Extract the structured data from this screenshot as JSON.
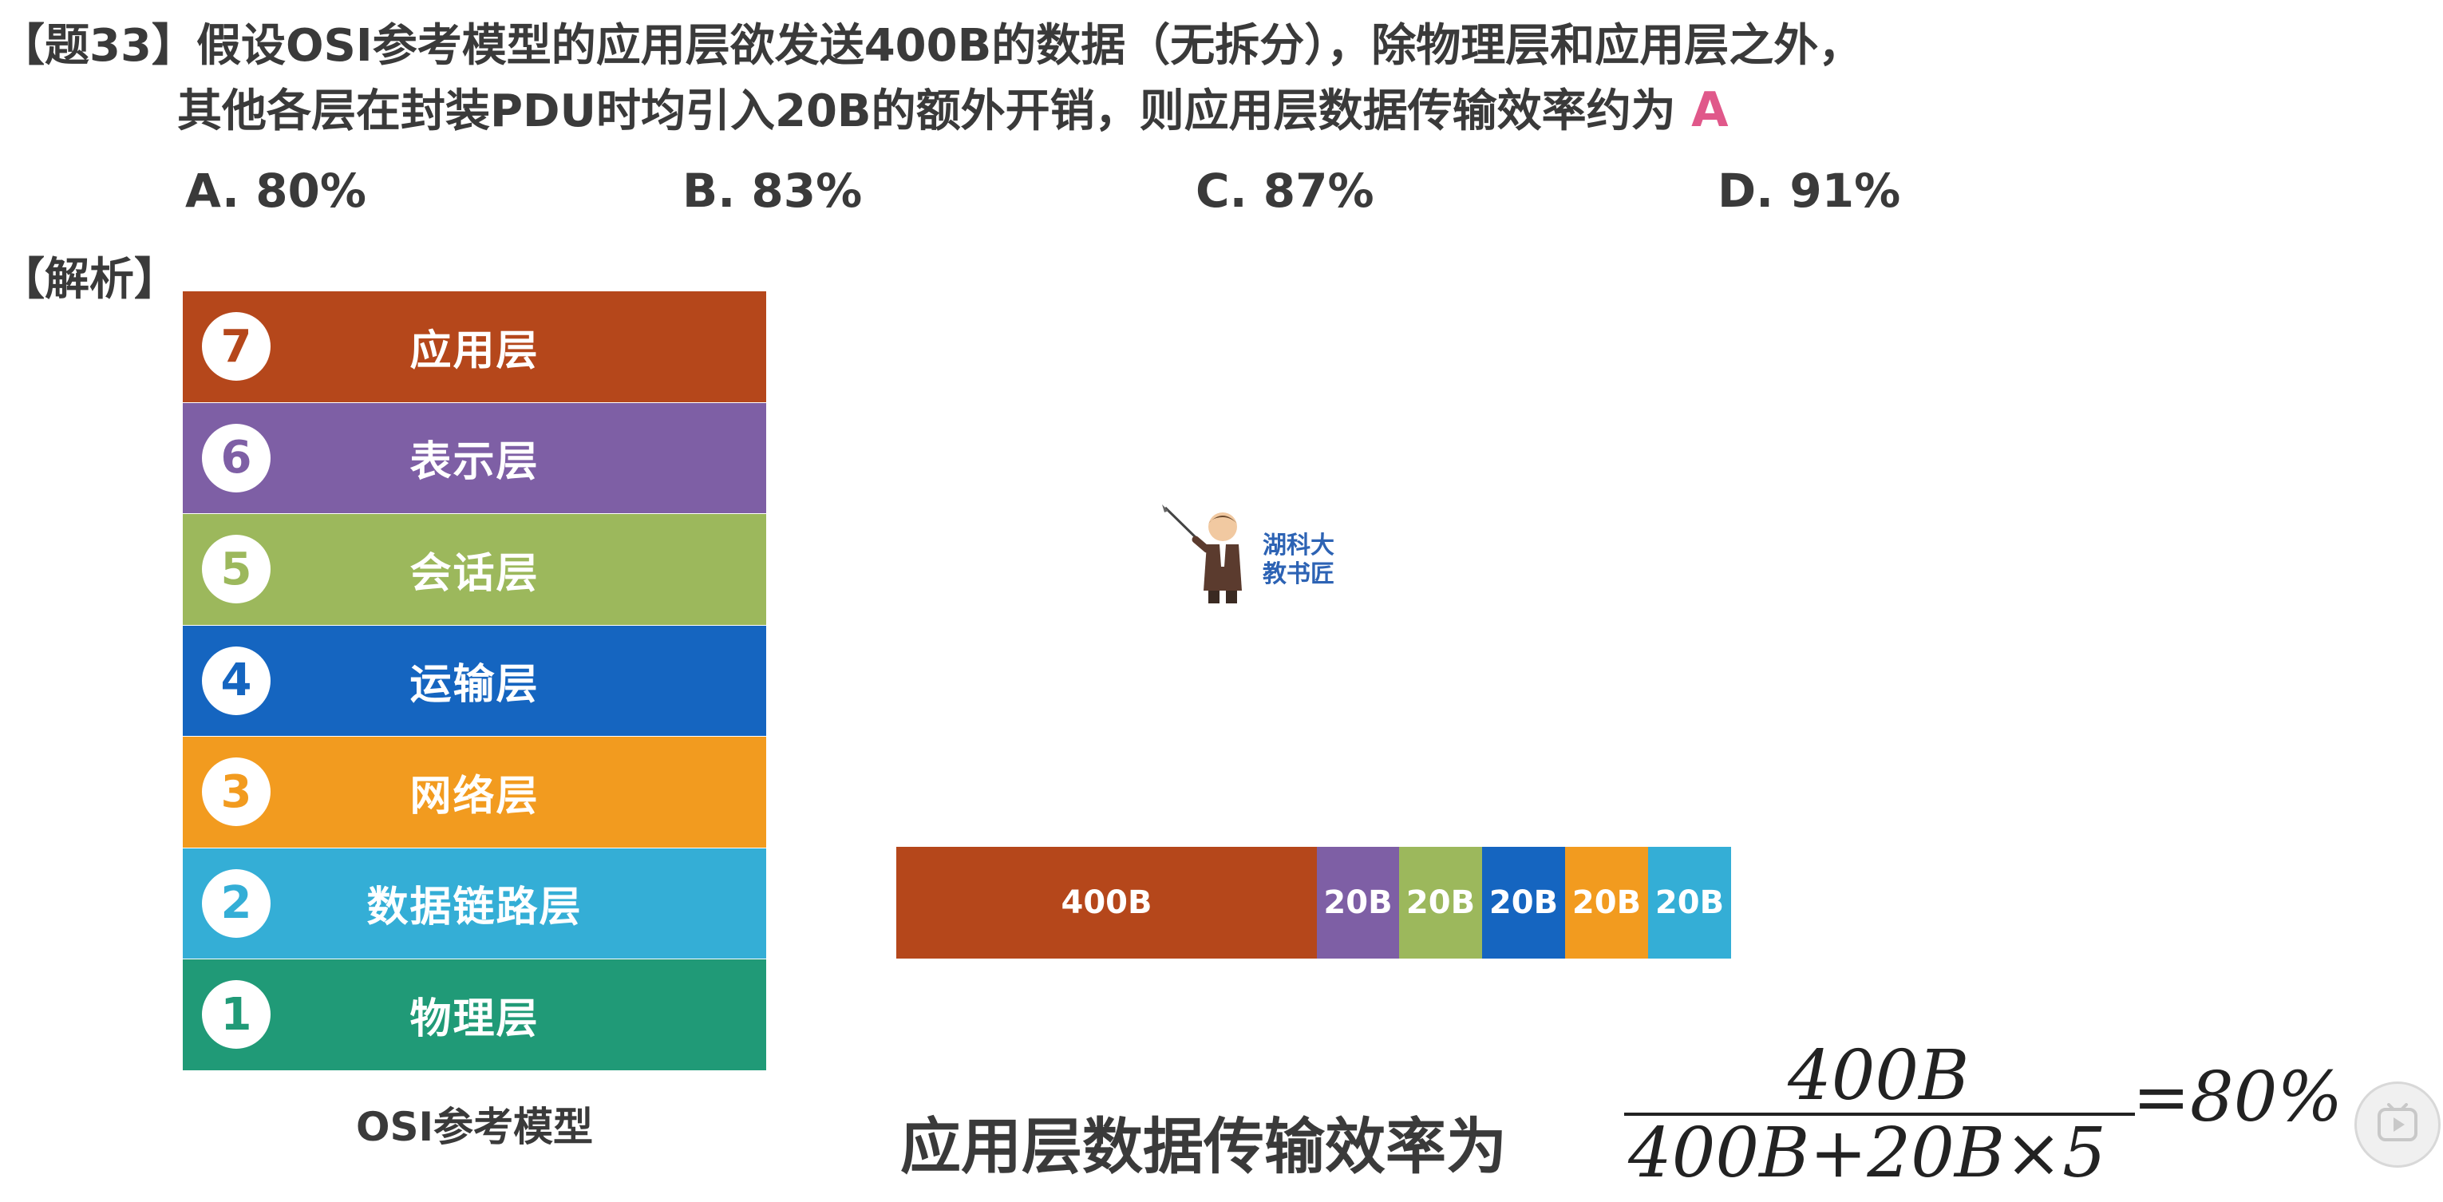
{
  "question": {
    "tag": "【题33】",
    "line1": "假设OSI参考模型的应用层欲发送400B的数据（无拆分），除物理层和应用层之外，",
    "line2": "其他各层在封装PDU时均引入20B的额外开销，则应用层数据传输效率约为",
    "answer": "A"
  },
  "options": [
    {
      "label": "A. 80%"
    },
    {
      "label": "B. 83%"
    },
    {
      "label": "C. 87%"
    },
    {
      "label": "D. 91%"
    }
  ],
  "analysis_label": "【解析】",
  "osi": {
    "caption": "OSI参考模型",
    "layers": [
      {
        "num": "7",
        "name": "应用层",
        "color": "#b5471b"
      },
      {
        "num": "6",
        "name": "表示层",
        "color": "#7e5fa5"
      },
      {
        "num": "5",
        "name": "会话层",
        "color": "#9cb85c"
      },
      {
        "num": "4",
        "name": "运输层",
        "color": "#1565c0"
      },
      {
        "num": "3",
        "name": "网络层",
        "color": "#f29b1f"
      },
      {
        "num": "2",
        "name": "数据链路层",
        "color": "#34aed6"
      },
      {
        "num": "1",
        "name": "物理层",
        "color": "#209a77"
      }
    ]
  },
  "pdu": {
    "segments": [
      {
        "label": "400B",
        "color": "#b5471b"
      },
      {
        "label": "20B",
        "color": "#7e5fa5"
      },
      {
        "label": "20B",
        "color": "#9cb85c"
      },
      {
        "label": "20B",
        "color": "#1565c0"
      },
      {
        "label": "20B",
        "color": "#f29b1f"
      },
      {
        "label": "20B",
        "color": "#34aed6"
      }
    ]
  },
  "branding": {
    "line1": "湖科大",
    "line2": "教书匠"
  },
  "efficiency": {
    "label": "应用层数据传输效率为",
    "numerator": "400B",
    "denominator": "400B+20B×5",
    "result": "=80%"
  }
}
